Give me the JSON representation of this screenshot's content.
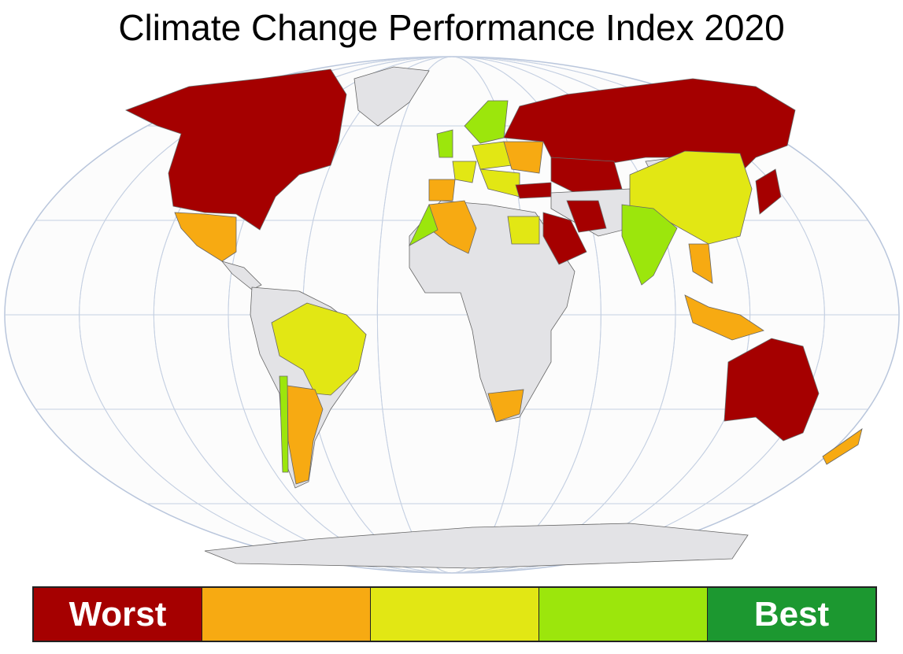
{
  "title": "Climate Change Performance Index 2020",
  "legend": {
    "labels": [
      "Worst",
      "",
      "",
      "",
      "Best"
    ],
    "colors": [
      "#a50000",
      "#f7aa12",
      "#e2e714",
      "#9ce60c",
      "#1c9830"
    ]
  },
  "no_data_color": "#e3e3e6",
  "country_ratings": {
    "north-america-usa-canada": 0,
    "greenland": -1,
    "mexico": 1,
    "central-america": -1,
    "south-america": -1,
    "brazil": 2,
    "argentina": 1,
    "chile": 3,
    "africa": -1,
    "algeria": 1,
    "morocco": 3,
    "egypt": 2,
    "south-africa": 1,
    "spain": 1,
    "france": 2,
    "uk": 3,
    "scandinavia": 3,
    "central-europe": 2,
    "eastern-europe": 1,
    "southern-europe": 2,
    "turkey": 0,
    "russia": 0,
    "kazakhstan": 0,
    "middle-east": -1,
    "iran": 0,
    "saudi-arabia": 0,
    "mongolia": -1,
    "china": 2,
    "india": 3,
    "southeast-asia": 1,
    "indonesia": 1,
    "japan": 0,
    "australia": 0,
    "new-zealand": 1,
    "antarctica": -1
  }
}
